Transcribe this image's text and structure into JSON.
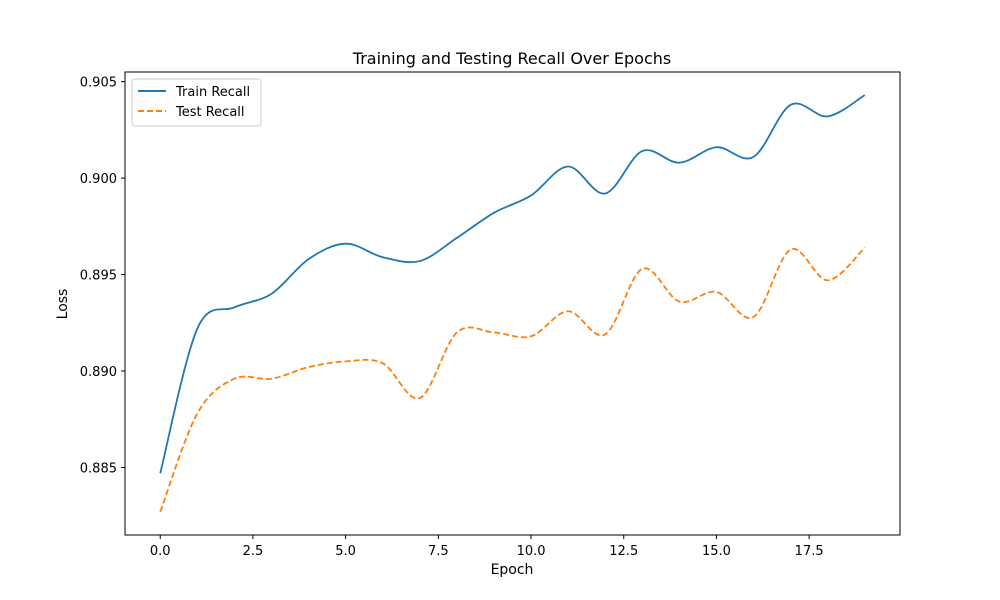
{
  "chart_data": {
    "type": "line",
    "title": "Training and Testing Recall Over Epochs",
    "xlabel": "Epoch",
    "ylabel": "Loss",
    "xlim": [
      -0.95,
      19.95
    ],
    "ylim": [
      0.8815,
      0.9055
    ],
    "xticks": [
      0.0,
      2.5,
      5.0,
      7.5,
      10.0,
      12.5,
      15.0,
      17.5
    ],
    "xtick_labels": [
      "0.0",
      "2.5",
      "5.0",
      "7.5",
      "10.0",
      "12.5",
      "15.0",
      "17.5"
    ],
    "yticks": [
      0.885,
      0.89,
      0.895,
      0.9,
      0.905
    ],
    "ytick_labels": [
      "0.885",
      "0.890",
      "0.895",
      "0.900",
      "0.905"
    ],
    "grid": false,
    "legend_position": "upper-left",
    "x": [
      0,
      1,
      2,
      3,
      4,
      5,
      6,
      7,
      8,
      9,
      10,
      11,
      12,
      13,
      14,
      15,
      16,
      17,
      18,
      19
    ],
    "series": [
      {
        "name": "Train Recall",
        "color": "#1f77b4",
        "style": "solid",
        "values": [
          0.8847,
          0.8922,
          0.8933,
          0.894,
          0.8958,
          0.8966,
          0.8959,
          0.8957,
          0.8969,
          0.8982,
          0.8991,
          0.9006,
          0.8992,
          0.9014,
          0.9008,
          0.9016,
          0.9011,
          0.9038,
          0.9032,
          0.9043
        ]
      },
      {
        "name": "Test Recall",
        "color": "#ff7f0e",
        "style": "dashed",
        "values": [
          0.8827,
          0.8878,
          0.8896,
          0.8896,
          0.8902,
          0.8905,
          0.8904,
          0.8886,
          0.892,
          0.892,
          0.8918,
          0.8931,
          0.8919,
          0.8953,
          0.8936,
          0.8941,
          0.8928,
          0.8963,
          0.8947,
          0.8964
        ]
      }
    ]
  }
}
